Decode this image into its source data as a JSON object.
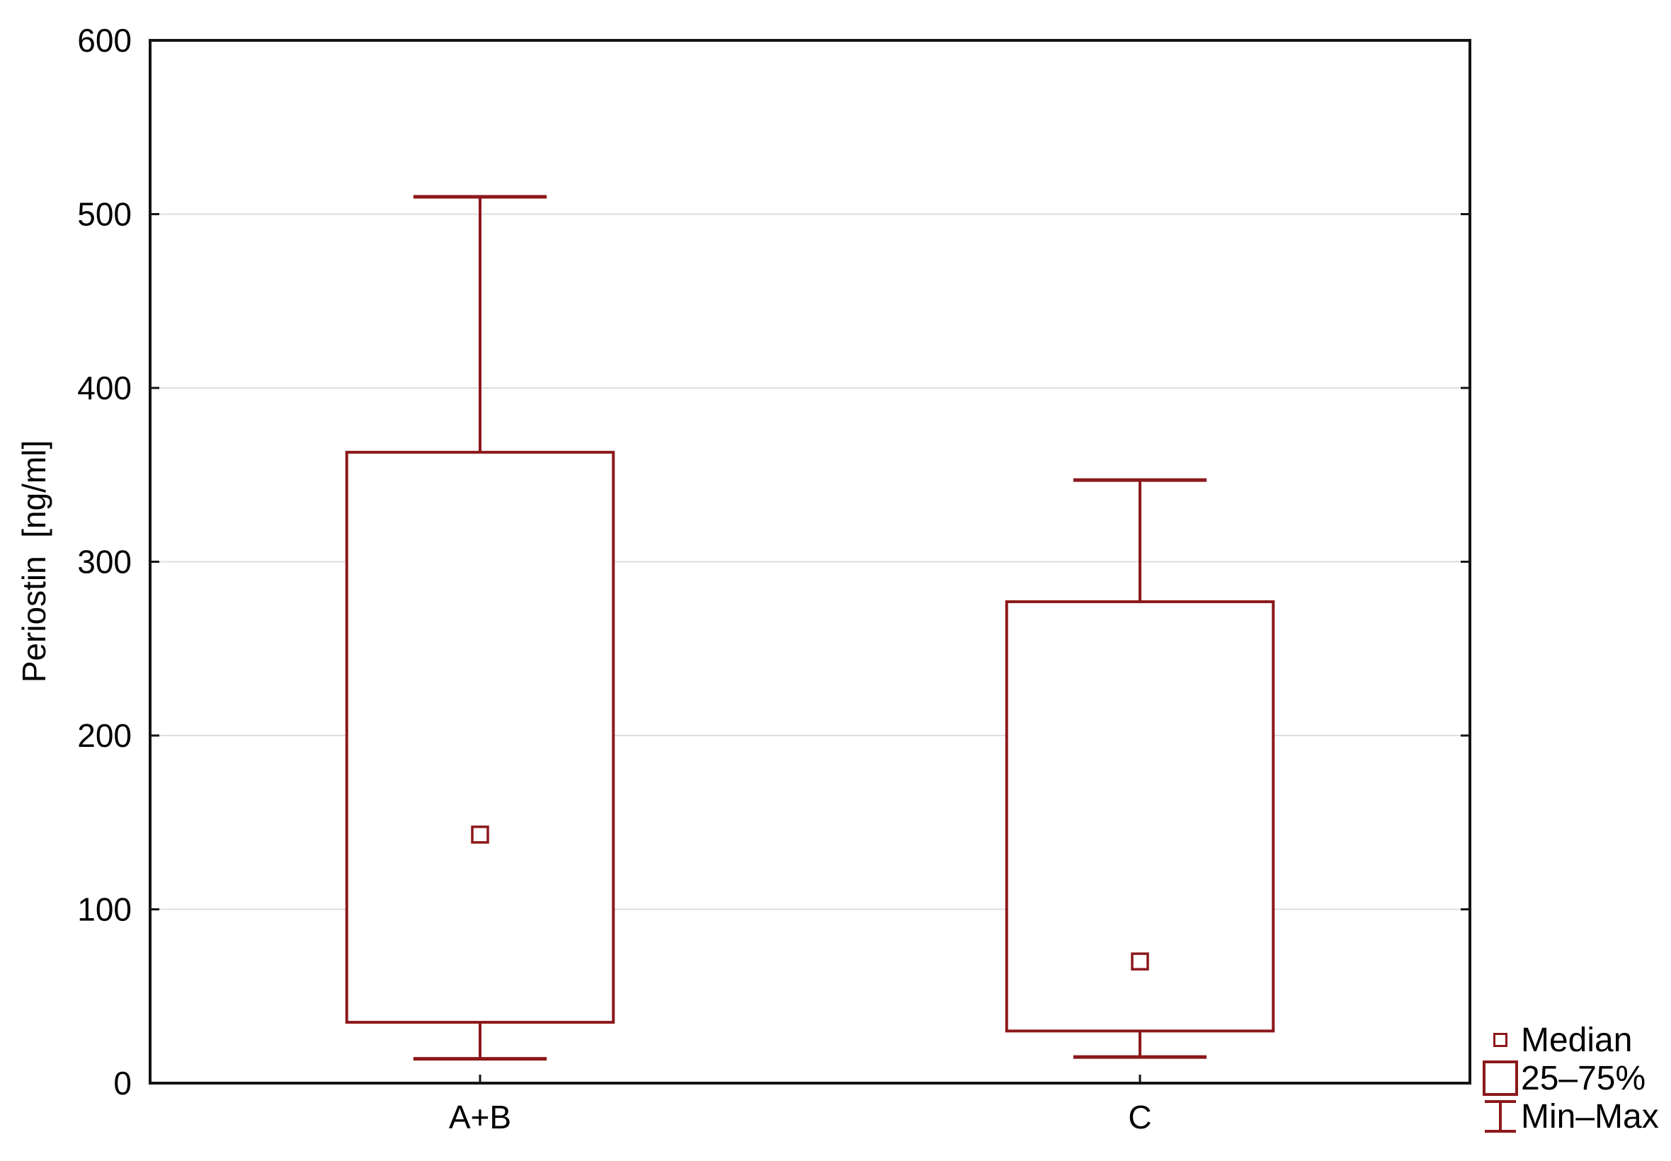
{
  "figure": {
    "background": "#FFFFFF"
  },
  "chart_data": {
    "type": "box",
    "title": "",
    "ylabel": "Periostin  [ng/ml]",
    "xlabel": "",
    "ylim": [
      0,
      600
    ],
    "yticks": [
      0,
      100,
      200,
      300,
      400,
      500,
      600
    ],
    "categories": [
      "A+B",
      "C"
    ],
    "boxes": [
      {
        "category": "A+B",
        "min": 14,
        "q1": 35,
        "median": 143,
        "q3": 363,
        "max": 510
      },
      {
        "category": "C",
        "min": 15,
        "q1": 30,
        "median": 70,
        "q3": 277,
        "max": 347
      }
    ],
    "legend": [
      {
        "symbol": "median-square",
        "label": "Median"
      },
      {
        "symbol": "iqr-box",
        "label": "25–75%"
      },
      {
        "symbol": "min-max-whisker",
        "label": "Min–Max"
      }
    ],
    "legend_position": "outside-bottom-right",
    "grid": "horizontal",
    "colors": {
      "series": "#8C181B",
      "axis": "#141414",
      "gridline": "#DEDEDE",
      "text": "#000000",
      "background": "#FFFFFF"
    }
  }
}
